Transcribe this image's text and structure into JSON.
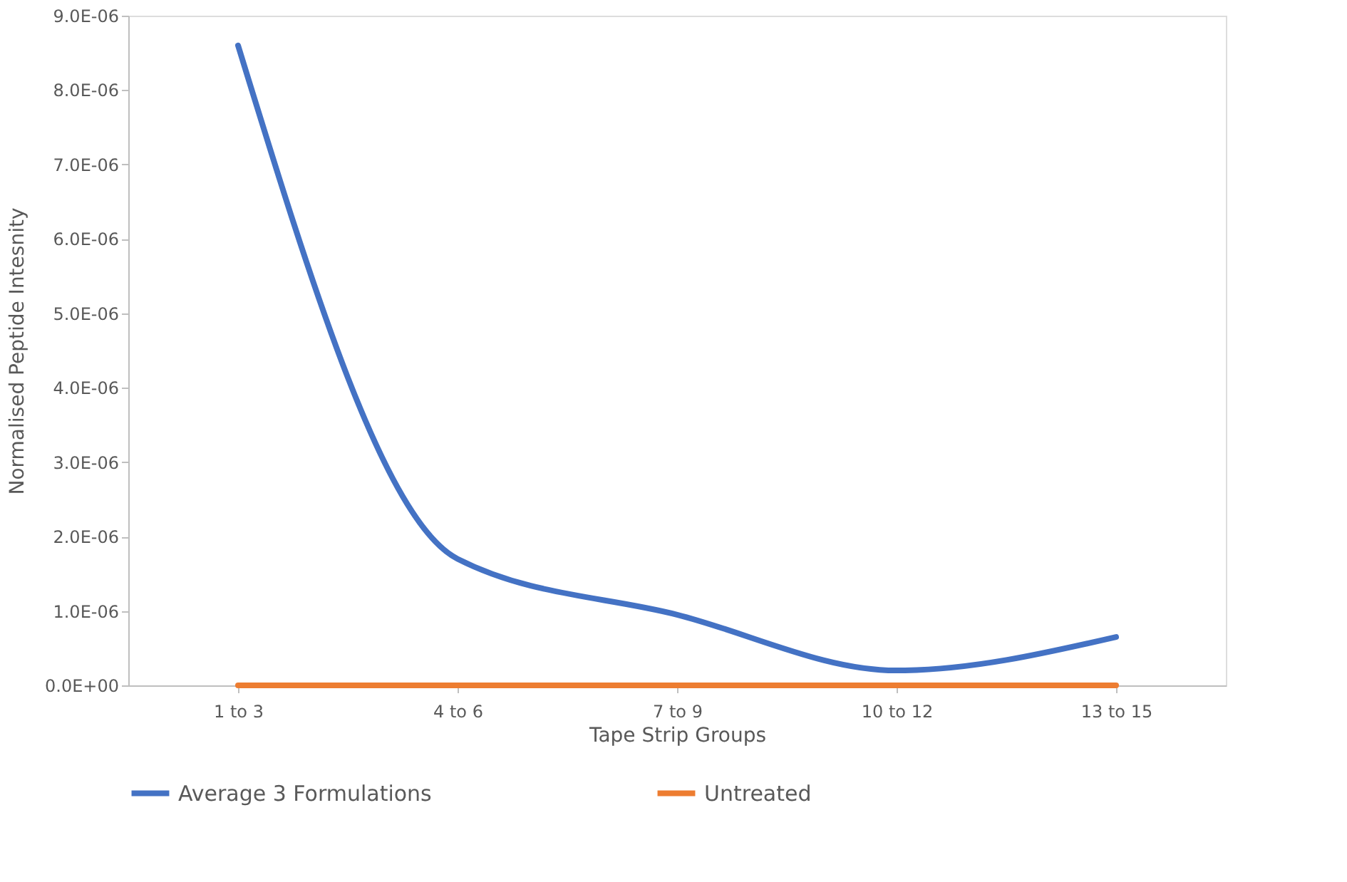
{
  "chart_data": {
    "type": "line",
    "xlabel": "Tape Strip Groups",
    "ylabel": "Normalised Peptide Intesnity",
    "categories": [
      "1 to 3",
      "4 to 6",
      "7 to 9",
      "10 to 12",
      "13 to 15"
    ],
    "series": [
      {
        "name": "Average 3 Formulations",
        "color": "#4472c4",
        "values": [
          8.6e-06,
          1.7e-06,
          9.5e-07,
          2e-07,
          6.5e-07
        ]
      },
      {
        "name": "Untreated",
        "color": "#ed7d31",
        "values": [
          0,
          0,
          0,
          0,
          0
        ]
      }
    ],
    "ylim": [
      0,
      9e-06
    ],
    "yticks": [
      {
        "value": 0,
        "label": "0.0E+00"
      },
      {
        "value": 1e-06,
        "label": "1.0E-06"
      },
      {
        "value": 2e-06,
        "label": "2.0E-06"
      },
      {
        "value": 3e-06,
        "label": "3.0E-06"
      },
      {
        "value": 4e-06,
        "label": "4.0E-06"
      },
      {
        "value": 5e-06,
        "label": "5.0E-06"
      },
      {
        "value": 6e-06,
        "label": "6.0E-06"
      },
      {
        "value": 7e-06,
        "label": "7.0E-06"
      },
      {
        "value": 8e-06,
        "label": "8.0E-06"
      },
      {
        "value": 9e-06,
        "label": "9.0E-06"
      }
    ],
    "grid": false,
    "legend": "bottom",
    "marker": "none",
    "line_style": "solid"
  }
}
